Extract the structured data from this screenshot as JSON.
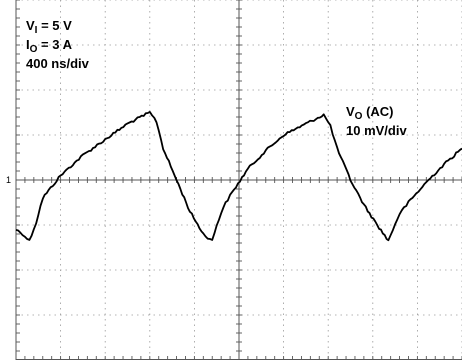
{
  "chart_data": {
    "type": "line",
    "title": "",
    "xlabel": "",
    "ylabel": "",
    "grid": true,
    "x_divisions": 10,
    "y_divisions": 8,
    "x_unit_per_div": "400 ns/div",
    "y_unit_per_div": "10 mV/div",
    "xlim": [
      0,
      10
    ],
    "ylim": [
      -4,
      4
    ],
    "ground_marker": "1",
    "annotations": {
      "vi": {
        "symbol": "V",
        "subscript": "I",
        "rest": " = 5 V"
      },
      "io": {
        "symbol": "I",
        "subscript": "O",
        "rest": " = 3 A"
      },
      "timebase": "400 ns/div",
      "trace_label": {
        "symbol": "V",
        "subscript": "O",
        "rest": " (AC)"
      },
      "trace_scale": "10 mV/div"
    },
    "series": [
      {
        "name": "VO (AC)",
        "x": [
          0.0,
          0.15,
          0.3,
          0.45,
          0.6,
          1.0,
          1.5,
          2.0,
          2.5,
          3.0,
          3.15,
          3.3,
          3.6,
          3.9,
          4.2,
          4.4,
          4.5,
          4.65,
          4.8,
          5.2,
          5.6,
          6.0,
          6.5,
          6.9,
          7.05,
          7.2,
          7.5,
          7.8,
          8.1,
          8.35,
          8.45,
          8.6,
          8.8,
          9.2,
          9.6,
          10.0
        ],
        "y": [
          -1.1,
          -1.2,
          -1.35,
          -0.95,
          -0.4,
          0.1,
          0.55,
          0.9,
          1.25,
          1.5,
          1.3,
          0.7,
          0.0,
          -0.7,
          -1.2,
          -1.35,
          -1.0,
          -0.6,
          -0.35,
          0.25,
          0.65,
          1.0,
          1.25,
          1.45,
          1.2,
          0.7,
          0.0,
          -0.55,
          -1.0,
          -1.35,
          -1.1,
          -0.75,
          -0.5,
          -0.05,
          0.35,
          0.7
        ]
      }
    ]
  }
}
